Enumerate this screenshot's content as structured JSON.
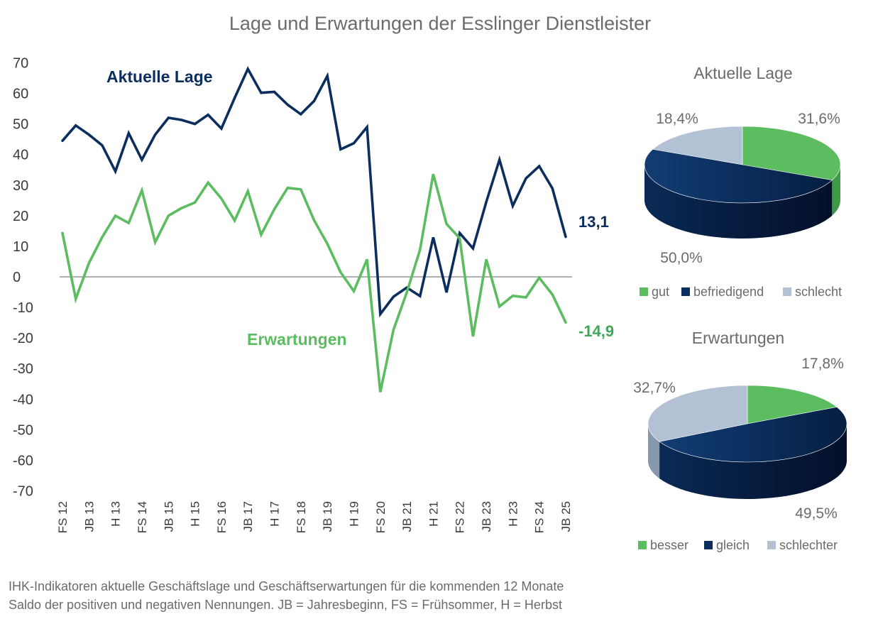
{
  "colors": {
    "dark": "#0b2e5e",
    "green": "#5bbd60",
    "green_label": "#3fa65a",
    "light": "#b2c1d4",
    "text_grey": "#6b6b6b",
    "axis_text": "#3a3a3a"
  },
  "chart_data": [
    {
      "type": "line",
      "title": "Lage und Erwartungen der Esslinger Dienstleister",
      "ylim": [
        -70,
        70
      ],
      "yticks": [
        "70",
        "60",
        "50",
        "40",
        "30",
        "20",
        "10",
        "0",
        "-10",
        "-20",
        "-30",
        "-40",
        "-50",
        "-60",
        "-70"
      ],
      "x": [
        "FS 12",
        "",
        "JB 13",
        "",
        "H 13",
        "",
        "FS 14",
        "",
        "JB 15",
        "",
        "H 15",
        "",
        "FS 16",
        "",
        "JB 17",
        "",
        "H 17",
        "",
        "FS 18",
        "",
        "JB 19",
        "",
        "H 19",
        "",
        "FS 20",
        "",
        "JB 21",
        "",
        "H 21",
        "",
        "FS 22",
        "",
        "JB 23",
        "",
        "H 23",
        "",
        "FS 24",
        "",
        "JB 25"
      ],
      "series": [
        {
          "name": "Aktuelle Lage",
          "values": [
            44.5,
            49.5,
            46.5,
            43,
            34.5,
            47,
            38.3,
            46.5,
            52,
            51.3,
            50,
            53,
            48.5,
            58.5,
            68,
            60.2,
            60.5,
            56.3,
            53.2,
            57.5,
            65.7,
            41.7,
            43.7,
            49,
            -12.2,
            -6.5,
            -3.5,
            -6.3,
            12.9,
            -5.1,
            14.3,
            9.3,
            24.5,
            38.3,
            23.2,
            32.2,
            36.2,
            28.9,
            13.1
          ],
          "end_label": "13,1"
        },
        {
          "name": "Erwartungen",
          "values": [
            14.3,
            -7.2,
            4.5,
            13,
            20,
            17.6,
            28.3,
            11.3,
            20,
            22.5,
            24.3,
            30.8,
            25.6,
            18.4,
            28,
            13.8,
            22.1,
            29.1,
            28.6,
            18.5,
            10.8,
            1.5,
            -4.7,
            5.7,
            -37.7,
            -17.3,
            -5.1,
            8.9,
            33.6,
            17.3,
            12.6,
            -19.5,
            5.7,
            -9.7,
            -6.2,
            -6.7,
            -0.3,
            -5.8,
            -14.9
          ],
          "end_label": "-14,9"
        }
      ]
    },
    {
      "type": "pie",
      "title": "Aktuelle Lage",
      "categories": [
        "gut",
        "befriedigend",
        "schlecht"
      ],
      "values": [
        31.6,
        50.0,
        18.4
      ],
      "labels": [
        "31,6%",
        "50,0%",
        "18,4%"
      ]
    },
    {
      "type": "pie",
      "title": "Erwartungen",
      "categories": [
        "besser",
        "gleich",
        "schlechter"
      ],
      "values": [
        17.8,
        49.5,
        32.7
      ],
      "labels": [
        "17,8%",
        "49,5%",
        "32,7%"
      ]
    }
  ],
  "footnote": {
    "line1": "IHK-Indikatoren aktuelle Geschäftslage und Geschäftserwartungen für die kommenden 12 Monate",
    "line2": "Saldo der positiven und negativen Nennungen. JB = Jahresbeginn, FS = Frühsommer, H = Herbst"
  }
}
